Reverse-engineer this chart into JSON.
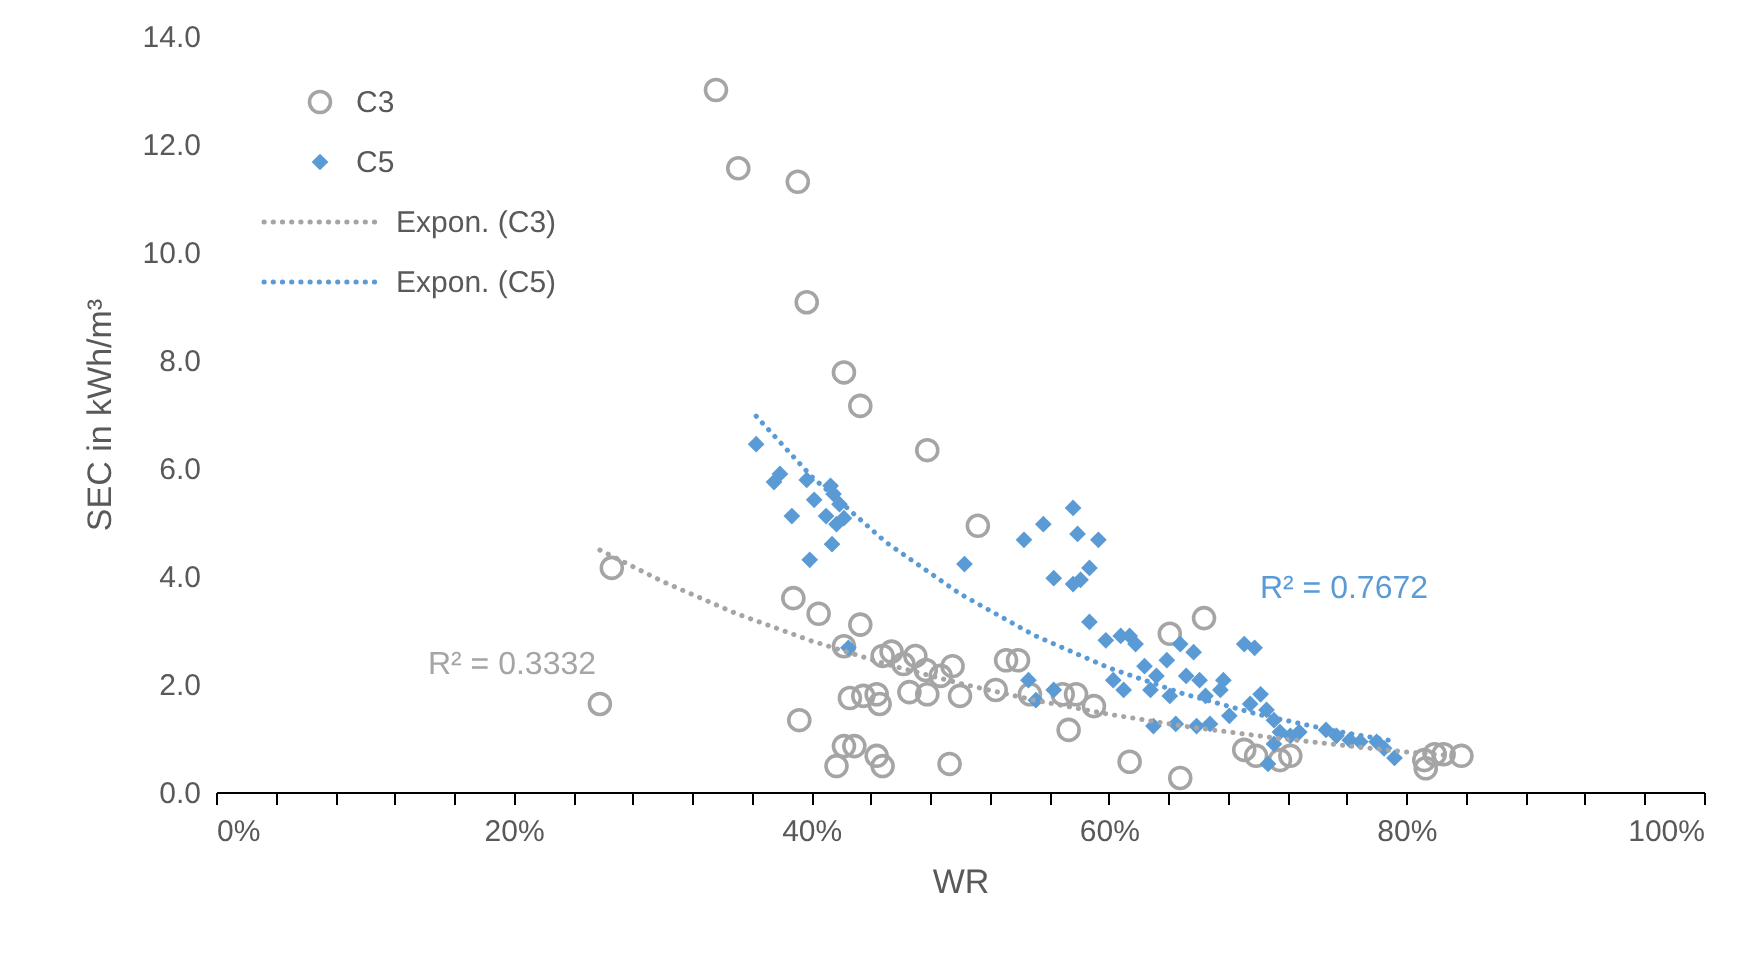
{
  "chart_data": {
    "type": "scatter",
    "xlabel": "WR",
    "ylabel": "SEC in kWh/m³",
    "xlim": [
      0,
      100
    ],
    "ylim": [
      0,
      14
    ],
    "xticks": [
      {
        "value": 0,
        "label": "0%"
      },
      {
        "value": 4,
        "label": null
      },
      {
        "value": 8,
        "label": null
      },
      {
        "value": 12,
        "label": null
      },
      {
        "value": 16,
        "label": null
      },
      {
        "value": 20,
        "label": "20%"
      },
      {
        "value": 24,
        "label": null
      },
      {
        "value": 28,
        "label": null
      },
      {
        "value": 32,
        "label": null
      },
      {
        "value": 36,
        "label": null
      },
      {
        "value": 40,
        "label": "40%"
      },
      {
        "value": 44,
        "label": null
      },
      {
        "value": 48,
        "label": null
      },
      {
        "value": 52,
        "label": null
      },
      {
        "value": 56,
        "label": null
      },
      {
        "value": 60,
        "label": "60%"
      },
      {
        "value": 64,
        "label": null
      },
      {
        "value": 68,
        "label": null
      },
      {
        "value": 72,
        "label": null
      },
      {
        "value": 76,
        "label": null
      },
      {
        "value": 80,
        "label": "80%"
      },
      {
        "value": 84,
        "label": null
      },
      {
        "value": 88,
        "label": null
      },
      {
        "value": 92,
        "label": null
      },
      {
        "value": 96,
        "label": null
      },
      {
        "value": 100,
        "label": "100%"
      }
    ],
    "yticks": [
      {
        "value": 0,
        "label": "0.0"
      },
      {
        "value": 2,
        "label": "2.0"
      },
      {
        "value": 4,
        "label": "4.0"
      },
      {
        "value": 6,
        "label": "6.0"
      },
      {
        "value": 8,
        "label": "8.0"
      },
      {
        "value": 10,
        "label": "10.0"
      },
      {
        "value": 12,
        "label": "12.0"
      },
      {
        "value": 14,
        "label": "14.0"
      }
    ],
    "grid": false,
    "legend": "top left",
    "annotations": [
      "R² = 0.3332",
      "R² = 0.7672"
    ],
    "series": [
      {
        "name": "C3",
        "marker": "circle",
        "color": "#a5a5a5",
        "x": [
          33.6,
          35.1,
          39.1,
          39.7,
          42.2,
          43.3,
          47.8,
          25.8,
          26.6,
          51.2,
          38.8,
          40.5,
          43.3,
          39.2,
          41.7,
          42.2,
          42.9,
          44.4,
          44.8,
          49.3,
          66.4,
          64.1,
          61.4,
          64.8,
          57.3,
          42.2,
          42.6,
          43.5,
          44.4,
          44.8,
          45.4,
          46.2,
          47.0,
          47.7,
          48.7,
          49.5,
          50.0,
          46.6,
          47.8,
          44.6,
          52.4,
          53.1,
          53.9,
          54.7,
          56.9,
          57.8,
          59.0,
          69.1,
          69.9,
          71.5,
          72.2,
          81.2,
          81.9,
          82.5,
          83.7,
          81.3
        ],
        "values": [
          13.0,
          11.55,
          11.3,
          9.07,
          7.77,
          7.15,
          6.33,
          1.63,
          4.15,
          4.93,
          3.59,
          3.3,
          3.1,
          1.33,
          0.48,
          0.85,
          0.85,
          0.67,
          0.48,
          0.52,
          3.22,
          2.93,
          0.56,
          0.26,
          1.15,
          2.7,
          1.74,
          1.78,
          1.81,
          2.52,
          2.6,
          2.37,
          2.52,
          2.26,
          2.15,
          2.33,
          1.78,
          1.85,
          1.81,
          1.63,
          1.89,
          2.44,
          2.44,
          1.81,
          1.81,
          1.81,
          1.59,
          0.78,
          0.67,
          0.59,
          0.67,
          0.59,
          0.7,
          0.7,
          0.67,
          0.44
        ]
      },
      {
        "name": "C5",
        "marker": "diamond",
        "color": "#5b9bd5",
        "x": [
          36.3,
          37.5,
          37.9,
          39.7,
          38.7,
          40.2,
          41.3,
          41.5,
          41.0,
          41.7,
          42.2,
          41.9,
          39.9,
          41.4,
          42.5,
          50.3,
          54.3,
          55.6,
          57.6,
          57.9,
          59.3,
          56.3,
          57.6,
          58.7,
          58.7,
          58.1,
          54.6,
          55.1,
          56.3,
          59.8,
          60.8,
          61.4,
          61.8,
          62.4,
          60.3,
          61.0,
          62.8,
          63.2,
          63.9,
          64.8,
          65.2,
          64.1,
          65.7,
          66.1,
          66.5,
          67.5,
          63.0,
          65.9,
          66.8,
          67.7,
          69.1,
          69.8,
          70.2,
          70.6,
          71.1,
          69.5,
          71.5,
          72.2,
          72.8,
          74.6,
          75.3,
          76.2,
          76.9,
          78.0,
          78.5,
          79.2,
          70.7,
          71.1,
          68.1,
          64.5
        ],
        "values": [
          6.44,
          5.74,
          5.89,
          5.78,
          5.11,
          5.41,
          5.67,
          5.52,
          5.11,
          4.96,
          5.07,
          5.33,
          4.3,
          4.59,
          2.67,
          4.22,
          4.67,
          4.96,
          5.26,
          4.78,
          4.67,
          3.96,
          3.85,
          4.15,
          3.15,
          3.93,
          2.07,
          1.7,
          1.89,
          2.81,
          2.89,
          2.89,
          2.74,
          2.33,
          2.07,
          1.89,
          1.89,
          2.15,
          2.44,
          2.74,
          2.15,
          1.78,
          2.59,
          2.07,
          1.78,
          1.89,
          1.22,
          1.22,
          1.26,
          2.07,
          2.74,
          2.67,
          1.81,
          1.52,
          1.33,
          1.63,
          1.11,
          1.04,
          1.11,
          1.15,
          1.04,
          0.96,
          0.93,
          0.93,
          0.81,
          0.63,
          0.52,
          0.89,
          1.41,
          1.26
        ]
      },
      {
        "name": "Expon. (C3)",
        "type": "line",
        "line_style": "dotted",
        "color": "#a5a5a5",
        "x": [
          25.8,
          30,
          35,
          40,
          45,
          50,
          55,
          60,
          65,
          71.5,
          80,
          83.7
        ],
        "values": [
          4.48,
          3.9,
          3.3,
          2.8,
          2.37,
          2.01,
          1.7,
          1.44,
          1.22,
          0.99,
          0.74,
          0.66
        ]
      },
      {
        "name": "Expon. (C5)",
        "type": "line",
        "line_style": "dotted",
        "color": "#5b9bd5",
        "x": [
          36.3,
          40,
          45,
          50,
          55,
          60,
          65,
          70,
          75,
          79.2
        ],
        "values": [
          6.96,
          5.85,
          4.63,
          3.67,
          2.9,
          2.3,
          1.82,
          1.44,
          1.14,
          0.94
        ]
      }
    ]
  }
}
